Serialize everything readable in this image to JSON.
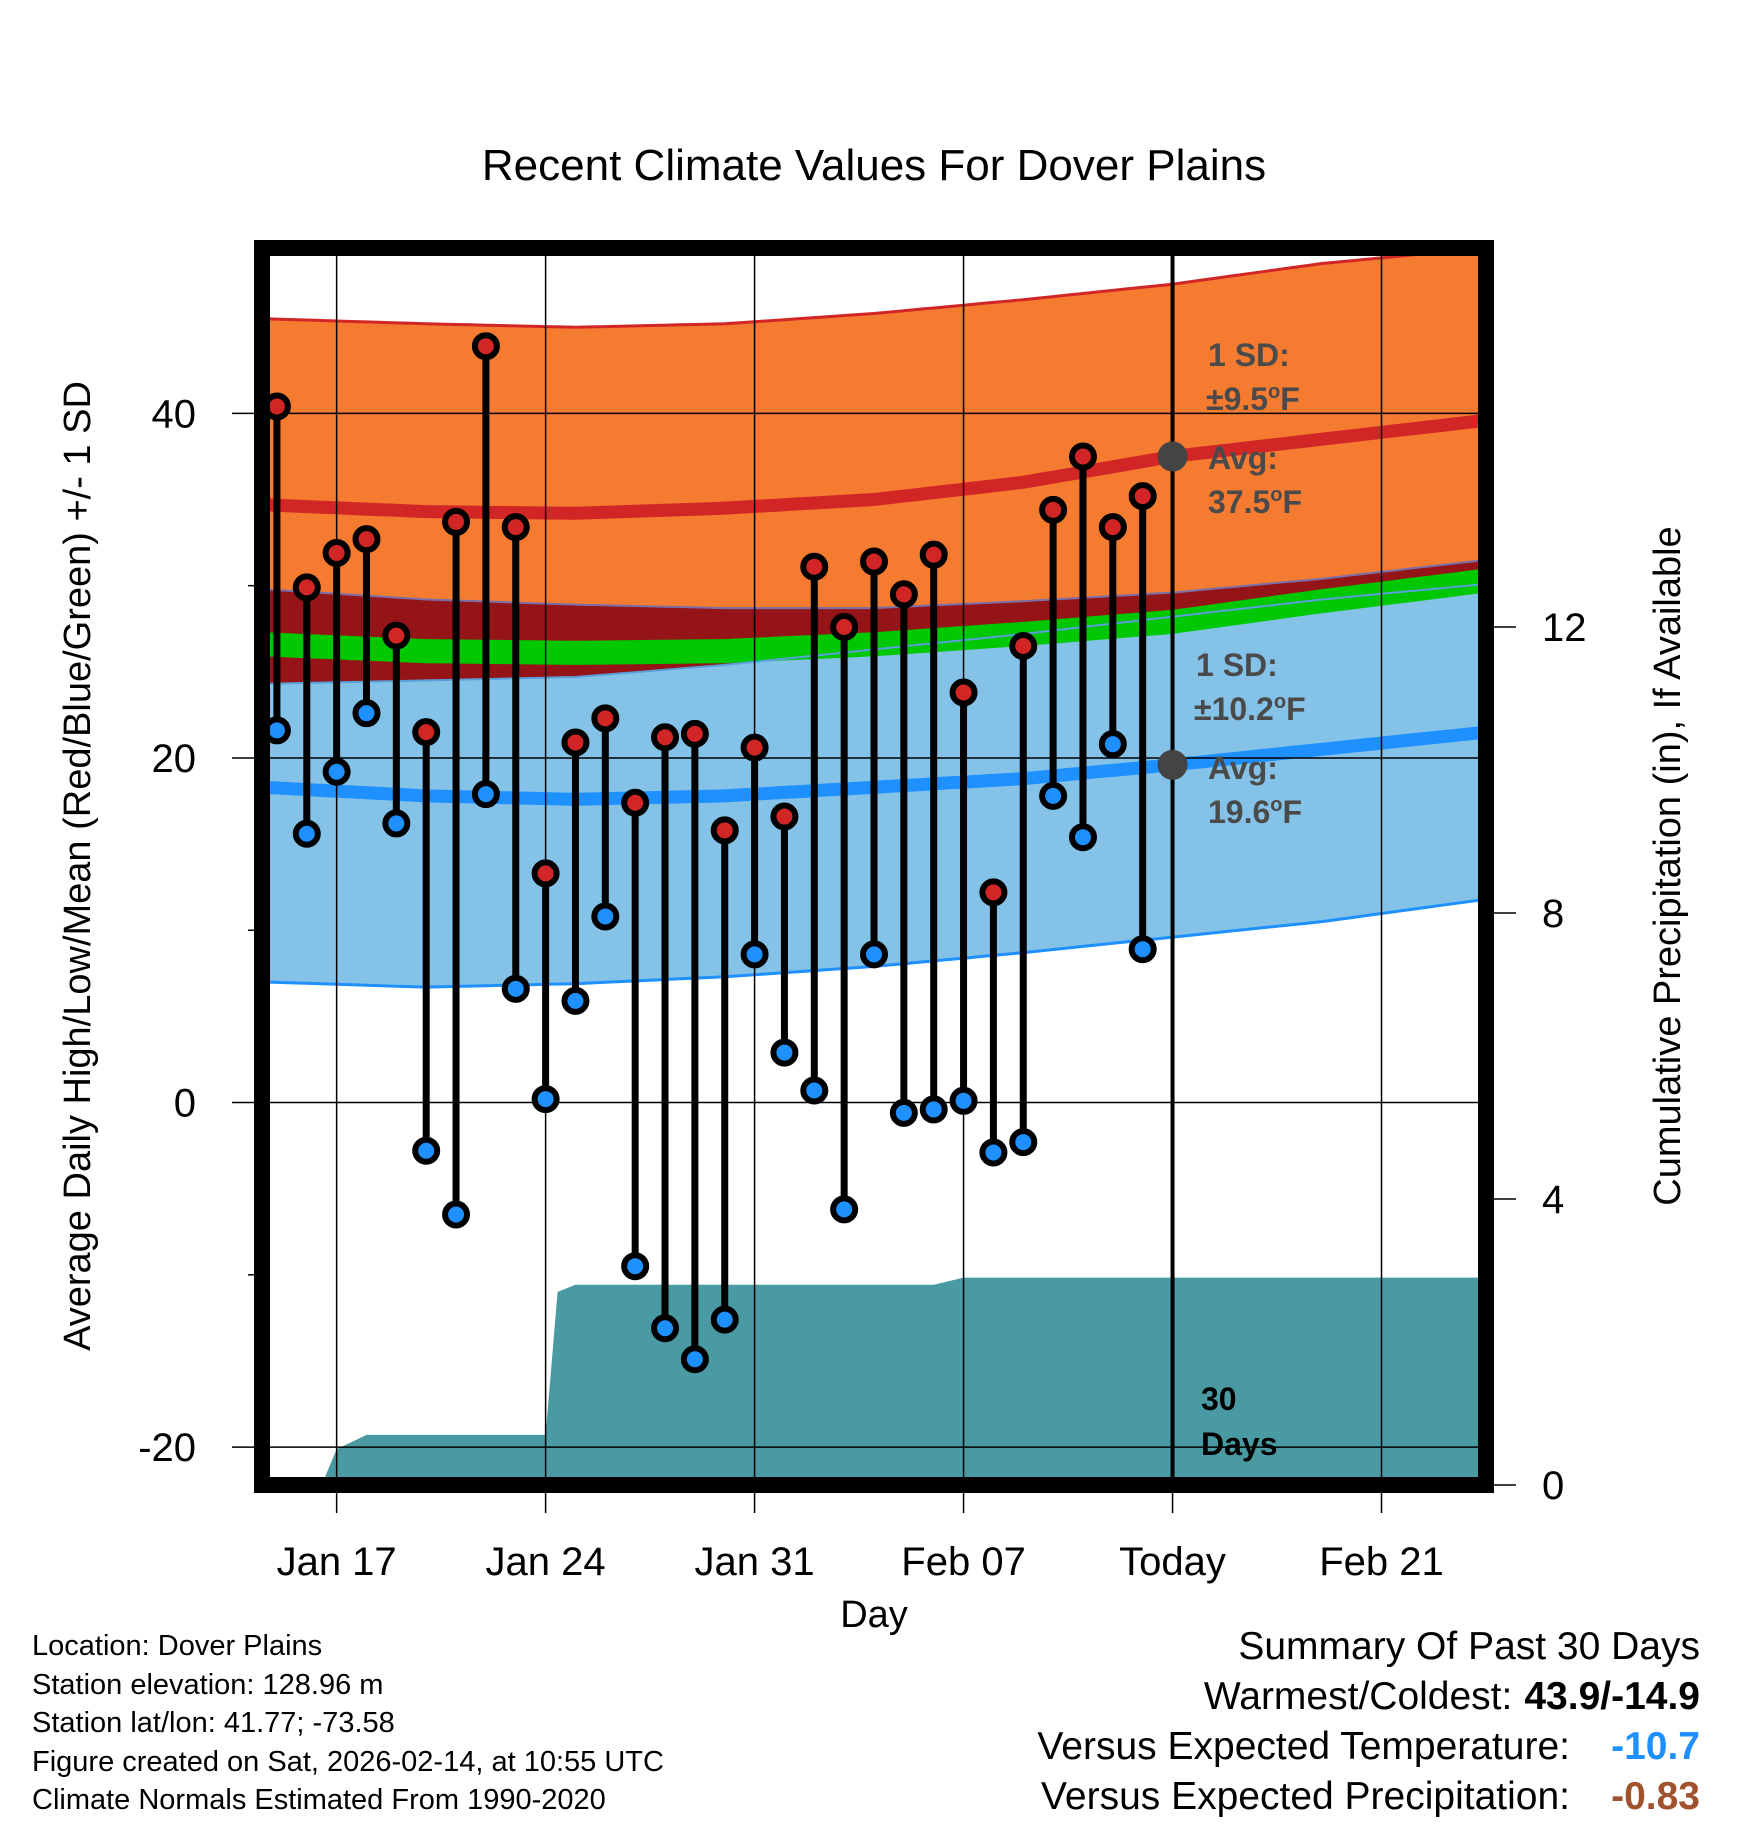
{
  "chart_data": {
    "type": "climate-range",
    "title": "Recent Climate Values For Dover Plains",
    "xlabel": "Day",
    "ylabel_left": "Average Daily High/Low/Mean (Red/Blue/Green) +/- 1 SD",
    "ylabel_right": "Cumulative Precipitation (in), If Available",
    "x_range_days": [
      -30.5,
      10.5
    ],
    "x_ticks": [
      {
        "day": -28,
        "label": "Jan 17"
      },
      {
        "day": -21,
        "label": "Jan 24"
      },
      {
        "day": -14,
        "label": "Jan 31"
      },
      {
        "day": -7,
        "label": "Feb 07"
      },
      {
        "day": 0,
        "label": "Today"
      },
      {
        "day": 7,
        "label": "Feb 21"
      }
    ],
    "ylim_left": [
      -22.2,
      49.6
    ],
    "y_ticks_left": [
      -20,
      0,
      20,
      40
    ],
    "y_minor_ticks_left": [
      -10,
      10,
      30
    ],
    "ylim_right": [
      0,
      17.3
    ],
    "y_ticks_right": [
      0,
      4,
      8,
      12
    ],
    "daily_temps": [
      {
        "day": -30,
        "high": 40.4,
        "low": 21.6
      },
      {
        "day": -29,
        "high": 29.9,
        "low": 15.6
      },
      {
        "day": -28,
        "high": 31.9,
        "low": 19.2
      },
      {
        "day": -27,
        "high": 32.7,
        "low": 22.6
      },
      {
        "day": -26,
        "high": 27.1,
        "low": 16.2
      },
      {
        "day": -25,
        "high": 21.5,
        "low": -2.8
      },
      {
        "day": -24,
        "high": 33.7,
        "low": -6.5
      },
      {
        "day": -23,
        "high": 43.9,
        "low": 17.9
      },
      {
        "day": -22,
        "high": 33.4,
        "low": 6.6
      },
      {
        "day": -21,
        "high": 13.3,
        "low": 0.2
      },
      {
        "day": -20,
        "high": 20.9,
        "low": 5.9
      },
      {
        "day": -19,
        "high": 22.3,
        "low": 10.8
      },
      {
        "day": -18,
        "high": 17.4,
        "low": -9.5
      },
      {
        "day": -17,
        "high": 21.2,
        "low": -13.1
      },
      {
        "day": -16,
        "high": 21.4,
        "low": -14.9
      },
      {
        "day": -15,
        "high": 15.8,
        "low": -12.6
      },
      {
        "day": -14,
        "high": 20.6,
        "low": 8.6
      },
      {
        "day": -13,
        "high": 16.6,
        "low": 2.9
      },
      {
        "day": -12,
        "high": 31.1,
        "low": 0.7
      },
      {
        "day": -11,
        "high": 27.6,
        "low": -6.2
      },
      {
        "day": -10,
        "high": 31.4,
        "low": 8.6
      },
      {
        "day": -9,
        "high": 29.5,
        "low": -0.6
      },
      {
        "day": -8,
        "high": 31.8,
        "low": -0.4
      },
      {
        "day": -7,
        "high": 23.8,
        "low": 0.1
      },
      {
        "day": -6,
        "high": 12.2,
        "low": -2.9
      },
      {
        "day": -5,
        "high": 26.5,
        "low": -2.3
      },
      {
        "day": -4,
        "high": 34.4,
        "low": 17.8
      },
      {
        "day": -3,
        "high": 37.5,
        "low": 15.4
      },
      {
        "day": -2,
        "high": 33.4,
        "low": 20.8
      },
      {
        "day": -1,
        "high": 35.2,
        "low": 8.9
      }
    ],
    "normal_high": {
      "days": [
        -30.5,
        -25,
        -20,
        -15,
        -10,
        -5,
        0,
        5,
        10.5
      ],
      "mean": [
        34.7,
        34.3,
        34.2,
        34.5,
        35.0,
        36.0,
        37.5,
        38.5,
        39.6
      ],
      "upper": [
        45.5,
        45.2,
        45.0,
        45.2,
        45.8,
        46.6,
        47.5,
        48.7,
        49.6
      ],
      "lower": [
        29.8,
        29.2,
        28.9,
        28.7,
        28.7,
        29.1,
        29.6,
        30.4,
        31.5
      ]
    },
    "normal_low": {
      "days": [
        -30.5,
        -25,
        -20,
        -15,
        -10,
        -5,
        0,
        5,
        10.5
      ],
      "mean": [
        18.3,
        17.8,
        17.6,
        17.8,
        18.3,
        18.8,
        19.6,
        20.5,
        21.5
      ],
      "upper": [
        24.3,
        24.5,
        24.7,
        25.4,
        26.3,
        27.2,
        28.2,
        29.2,
        30.1
      ],
      "lower": [
        7.0,
        6.7,
        6.9,
        7.3,
        7.9,
        8.7,
        9.6,
        10.5,
        11.8
      ]
    },
    "normal_mean": {
      "days": [
        -30.5,
        -25,
        -20,
        -15,
        -10,
        -5,
        0,
        5,
        10.5
      ],
      "upper": [
        27.3,
        26.9,
        26.8,
        26.9,
        27.3,
        27.9,
        28.6,
        29.8,
        31.0
      ],
      "lower": [
        25.9,
        25.5,
        25.4,
        25.5,
        25.9,
        26.5,
        27.2,
        28.4,
        29.6
      ]
    },
    "cumulative_precip": {
      "days": [
        -30.5,
        -28.5,
        -28,
        -27,
        -21,
        -20.6,
        -20,
        -8,
        -7,
        0,
        10.5
      ],
      "values": [
        0,
        0,
        0.5,
        0.7,
        0.7,
        2.7,
        2.8,
        2.8,
        2.9,
        2.9,
        2.9
      ]
    },
    "annotations": {
      "high_sd": {
        "line1": "1 SD:",
        "line2": "±9.5",
        "unit": "F"
      },
      "high_avg": {
        "line1": "Avg:",
        "line2": "37.5",
        "unit": "F",
        "value": 37.5
      },
      "low_sd": {
        "line1": "1 SD:",
        "line2": "±10.2",
        "unit": "F"
      },
      "low_avg": {
        "line1": "Avg:",
        "line2": "19.6",
        "unit": "F",
        "value": 19.6
      },
      "precip_days": {
        "line1": "30",
        "line2": "Days"
      }
    },
    "colors": {
      "high_band": "#f57b30",
      "high_line": "#d22626",
      "low_band": "#85c2e8",
      "low_line": "#1e90ff",
      "mean_band": "#00c800",
      "overlap": "#941418",
      "precip": "#4a9aa3",
      "marker_high": "#d22626",
      "marker_low": "#1e90ff",
      "avg_marker": "#444444"
    }
  },
  "footer": {
    "location": "Location: Dover Plains",
    "elevation": "Station elevation: 128.96 m",
    "latlon": "Station lat/lon: 41.77; -73.58",
    "created": "Figure created on Sat, 2026-02-14, at 10:55 UTC",
    "normals": "Climate Normals Estimated From 1990-2020"
  },
  "summary": {
    "heading": "Summary Of Past 30 Days",
    "warm_cold_label": "Warmest/Coldest:",
    "warm_cold_value": "43.9/-14.9",
    "temp_label": "Versus Expected Temperature:",
    "temp_value": "-10.7",
    "temp_color": "#1e90ff",
    "precip_label": "Versus Expected Precipitation:",
    "precip_value": "-0.83",
    "precip_color": "#a0522d"
  }
}
